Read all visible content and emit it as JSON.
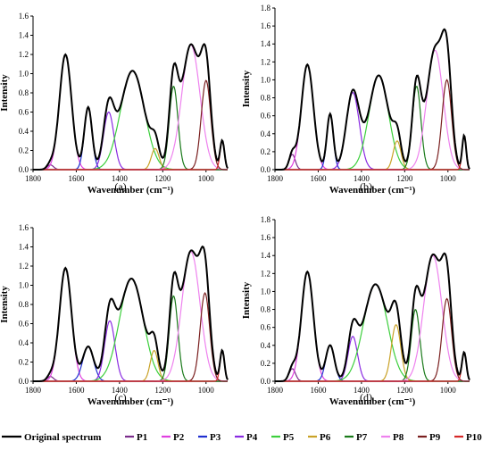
{
  "figure": {
    "legend": [
      {
        "name": "Original spectrum",
        "color": "#000000"
      },
      {
        "name": "P1",
        "color": "#7b2d8b"
      },
      {
        "name": "P2",
        "color": "#e040e0"
      },
      {
        "name": "P3",
        "color": "#1f2fd0"
      },
      {
        "name": "P4",
        "color": "#8a2be2"
      },
      {
        "name": "P5",
        "color": "#3ccf3c"
      },
      {
        "name": "P6",
        "color": "#c9a227"
      },
      {
        "name": "P7",
        "color": "#1a7a1a"
      },
      {
        "name": "P8",
        "color": "#ee82ee"
      },
      {
        "name": "P9",
        "color": "#7a1f1f"
      },
      {
        "name": "P10",
        "color": "#d62828"
      }
    ]
  },
  "chart_data": [
    {
      "type": "line",
      "panel": "(a)",
      "xlabel": "Wavenumber (cm⁻¹)",
      "ylabel": "Intensity",
      "xlim": [
        1800,
        900
      ],
      "ylim": [
        0,
        1.6
      ],
      "xticks": [
        "1800",
        "1600",
        "1400",
        "1200",
        "1000"
      ],
      "yticks": [
        "0.0",
        "0.2",
        "0.4",
        "0.6",
        "0.8",
        "1.0",
        "1.2",
        "1.4",
        "1.6"
      ],
      "peaks": [
        {
          "name": "P1",
          "center": 1720,
          "height": 0.05,
          "width": 15
        },
        {
          "name": "P2",
          "center": 1650,
          "height": 1.2,
          "width": 28
        },
        {
          "name": "P3",
          "center": 1545,
          "height": 0.65,
          "width": 18
        },
        {
          "name": "P4",
          "center": 1450,
          "height": 0.6,
          "width": 24
        },
        {
          "name": "P5",
          "center": 1340,
          "height": 1.03,
          "width": 55
        },
        {
          "name": "P6",
          "center": 1235,
          "height": 0.22,
          "width": 18
        },
        {
          "name": "P7",
          "center": 1150,
          "height": 0.87,
          "width": 20
        },
        {
          "name": "P8",
          "center": 1070,
          "height": 1.3,
          "width": 42
        },
        {
          "name": "P9",
          "center": 1000,
          "height": 0.93,
          "width": 22
        },
        {
          "name": "P10",
          "center": 925,
          "height": 0.3,
          "width": 10
        }
      ]
    },
    {
      "type": "line",
      "panel": "(b)",
      "xlabel": "Wavenumber (cm⁻¹)",
      "ylabel": "Intensity",
      "xlim": [
        1800,
        900
      ],
      "ylim": [
        0,
        1.8
      ],
      "xticks": [
        "1800",
        "1600",
        "1400",
        "1200",
        "1000"
      ],
      "yticks": [
        "0.0",
        "0.2",
        "0.4",
        "0.6",
        "0.8",
        "1.0",
        "1.2",
        "1.4",
        "1.6",
        "1.8"
      ],
      "peaks": [
        {
          "name": "P1",
          "center": 1720,
          "height": 0.17,
          "width": 14
        },
        {
          "name": "P2",
          "center": 1650,
          "height": 1.17,
          "width": 28
        },
        {
          "name": "P3",
          "center": 1545,
          "height": 0.62,
          "width": 15
        },
        {
          "name": "P4",
          "center": 1440,
          "height": 0.86,
          "width": 30
        },
        {
          "name": "P5",
          "center": 1320,
          "height": 1.05,
          "width": 45
        },
        {
          "name": "P6",
          "center": 1235,
          "height": 0.32,
          "width": 18
        },
        {
          "name": "P7",
          "center": 1145,
          "height": 0.93,
          "width": 20
        },
        {
          "name": "P8",
          "center": 1060,
          "height": 1.33,
          "width": 38
        },
        {
          "name": "P9",
          "center": 1005,
          "height": 1.0,
          "width": 22
        },
        {
          "name": "P10",
          "center": 925,
          "height": 0.38,
          "width": 9
        }
      ]
    },
    {
      "type": "line",
      "panel": "(c)",
      "xlabel": "Wavenumber (cm⁻¹)",
      "ylabel": "Intensity",
      "xlim": [
        1800,
        900
      ],
      "ylim": [
        0,
        1.6
      ],
      "xticks": [
        "1800",
        "1600",
        "1400",
        "1200",
        "1000"
      ],
      "yticks": [
        "0.0",
        "0.2",
        "0.4",
        "0.6",
        "0.8",
        "1.0",
        "1.2",
        "1.4",
        "1.6"
      ],
      "peaks": [
        {
          "name": "P1",
          "center": 1720,
          "height": 0.05,
          "width": 15
        },
        {
          "name": "P2",
          "center": 1650,
          "height": 1.18,
          "width": 28
        },
        {
          "name": "P3",
          "center": 1545,
          "height": 0.36,
          "width": 25
        },
        {
          "name": "P4",
          "center": 1445,
          "height": 0.63,
          "width": 24
        },
        {
          "name": "P5",
          "center": 1345,
          "height": 1.07,
          "width": 55
        },
        {
          "name": "P6",
          "center": 1240,
          "height": 0.32,
          "width": 18
        },
        {
          "name": "P7",
          "center": 1150,
          "height": 0.89,
          "width": 20
        },
        {
          "name": "P8",
          "center": 1070,
          "height": 1.35,
          "width": 42
        },
        {
          "name": "P9",
          "center": 1005,
          "height": 0.92,
          "width": 22
        },
        {
          "name": "P10",
          "center": 925,
          "height": 0.32,
          "width": 10
        }
      ]
    },
    {
      "type": "line",
      "panel": "(d)",
      "xlabel": "Wavenumber (cm⁻¹)",
      "ylabel": "Intensity",
      "xlim": [
        1800,
        900
      ],
      "ylim": [
        0,
        1.8
      ],
      "xticks": [
        "1800",
        "1600",
        "1400",
        "1200",
        "1000"
      ],
      "yticks": [
        "0.0",
        "0.2",
        "0.4",
        "0.6",
        "0.8",
        "1.0",
        "1.2",
        "1.4",
        "1.6",
        "1.8"
      ],
      "peaks": [
        {
          "name": "P1",
          "center": 1720,
          "height": 0.14,
          "width": 15
        },
        {
          "name": "P2",
          "center": 1650,
          "height": 1.22,
          "width": 28
        },
        {
          "name": "P3",
          "center": 1545,
          "height": 0.4,
          "width": 20
        },
        {
          "name": "P4",
          "center": 1440,
          "height": 0.5,
          "width": 22
        },
        {
          "name": "P5",
          "center": 1335,
          "height": 1.08,
          "width": 55
        },
        {
          "name": "P6",
          "center": 1240,
          "height": 0.63,
          "width": 22
        },
        {
          "name": "P7",
          "center": 1150,
          "height": 0.8,
          "width": 20
        },
        {
          "name": "P8",
          "center": 1070,
          "height": 1.4,
          "width": 42
        },
        {
          "name": "P9",
          "center": 1005,
          "height": 0.92,
          "width": 22
        },
        {
          "name": "P10",
          "center": 925,
          "height": 0.32,
          "width": 10
        }
      ]
    }
  ]
}
